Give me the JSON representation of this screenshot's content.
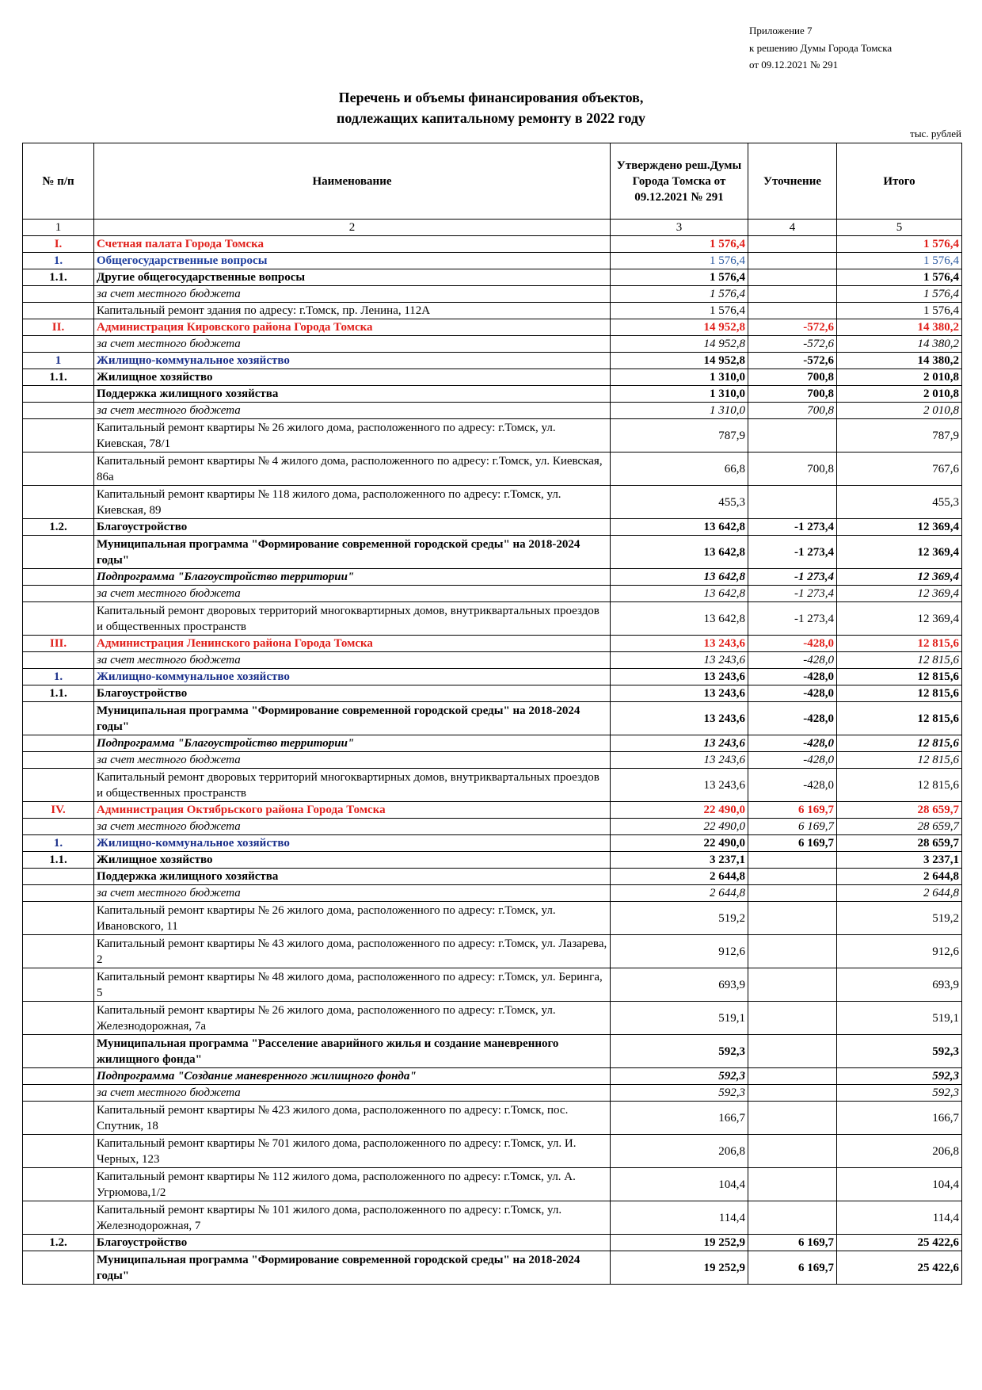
{
  "appendix": {
    "line1": "Приложение 7",
    "line2": "к решению Думы Города Томска",
    "line3": "от 09.12.2021 № 291"
  },
  "title": {
    "line1": "Перечень и объемы финансирования объектов,",
    "line2": "подлежащих капитальному ремонту в 2022 году"
  },
  "units": "тыс. рублей",
  "table": {
    "headers": {
      "num": "№ п/п",
      "name": "Наименование",
      "approved": "Утверждено реш.Думы Города Томска от 09.12.2021 № 291",
      "change": "Уточнение",
      "total": "Итого"
    },
    "column_numbers": [
      "1",
      "2",
      "3",
      "4",
      "5"
    ],
    "rows": [
      {
        "style": "red",
        "num": "I.",
        "name": "Счетная палата Города Томска",
        "approved": "1 576,4",
        "change": "",
        "total": "1 576,4"
      },
      {
        "style": "blue",
        "num": "1.",
        "name": "Общегосударственные вопросы",
        "approved": "1 576,4",
        "change": "",
        "total": "1 576,4"
      },
      {
        "style": "bold",
        "num": "1.1.",
        "name": "Другие общегосударственные вопросы",
        "approved": "1 576,4",
        "change": "",
        "total": "1 576,4"
      },
      {
        "style": "italic",
        "num": "",
        "name": "за счет местного бюджета",
        "approved": "1 576,4",
        "change": "",
        "total": "1 576,4"
      },
      {
        "style": "normal",
        "num": "",
        "name": "Капитальный ремонт здания по адресу: г.Томск, пр. Ленина, 112А",
        "approved": "1 576,4",
        "change": "",
        "total": "1 576,4"
      },
      {
        "style": "red",
        "num": "II.",
        "name": "Администрация Кировского района Города Томска",
        "approved": "14 952,8",
        "change": "-572,6",
        "total": "14 380,2"
      },
      {
        "style": "italic",
        "num": "",
        "name": "за счет местного бюджета",
        "approved": "14 952,8",
        "change": "-572,6",
        "total": "14 380,2"
      },
      {
        "style": "navy",
        "num": "1",
        "name": "Жилищно-коммунальное хозяйство",
        "approved": "14 952,8",
        "change": "-572,6",
        "total": "14 380,2"
      },
      {
        "style": "bold",
        "num": "1.1.",
        "name": "Жилищное хозяйство",
        "approved": "1 310,0",
        "change": "700,8",
        "total": "2 010,8"
      },
      {
        "style": "bold",
        "num": "",
        "name": "Поддержка жилищного хозяйства",
        "approved": "1 310,0",
        "change": "700,8",
        "total": "2 010,8"
      },
      {
        "style": "italic",
        "num": "",
        "name": "за счет местного бюджета",
        "approved": "1 310,0",
        "change": "700,8",
        "total": "2 010,8"
      },
      {
        "style": "normal tall",
        "num": "",
        "name": "Капитальный ремонт квартиры № 26 жилого дома, расположенного по адресу: г.Томск, ул. Киевская, 78/1",
        "approved": "787,9",
        "change": "",
        "total": "787,9"
      },
      {
        "style": "normal tall",
        "num": "",
        "name": "Капитальный ремонт квартиры № 4 жилого дома, расположенного по адресу: г.Томск, ул. Киевская, 86а",
        "approved": "66,8",
        "change": "700,8",
        "total": "767,6"
      },
      {
        "style": "normal tall",
        "num": "",
        "name": "Капитальный ремонт квартиры № 118 жилого дома, расположенного по адресу: г.Томск, ул. Киевская, 89",
        "approved": "455,3",
        "change": "",
        "total": "455,3"
      },
      {
        "style": "bold",
        "num": "1.2.",
        "name": "Благоустройство",
        "approved": "13 642,8",
        "change": "-1 273,4",
        "total": "12 369,4"
      },
      {
        "style": "bold tall",
        "num": "",
        "name": "Муниципальная программа \"Формирование современной городской среды\" на 2018-2024 годы\"",
        "approved": "13 642,8",
        "change": "-1 273,4",
        "total": "12 369,4"
      },
      {
        "style": "bolditalic",
        "num": "",
        "name": "Подпрограмма \"Благоустройство территории\"",
        "approved": "13 642,8",
        "change": "-1 273,4",
        "total": "12 369,4"
      },
      {
        "style": "italic",
        "num": "",
        "name": "за счет местного бюджета",
        "approved": "13 642,8",
        "change": "-1 273,4",
        "total": "12 369,4"
      },
      {
        "style": "normal tall",
        "num": "",
        "name": "Капитальный ремонт дворовых территорий многоквартирных домов, внутриквартальных проездов и общественных пространств",
        "approved": "13 642,8",
        "change": "-1 273,4",
        "total": "12 369,4"
      },
      {
        "style": "red",
        "num": "III.",
        "name": "Администрация Ленинского района Города Томска",
        "approved": "13 243,6",
        "change": "-428,0",
        "total": "12 815,6"
      },
      {
        "style": "italic",
        "num": "",
        "name": "за счет местного бюджета",
        "approved": "13 243,6",
        "change": "-428,0",
        "total": "12 815,6"
      },
      {
        "style": "navy",
        "num": "1.",
        "name": "Жилищно-коммунальное хозяйство",
        "approved": "13 243,6",
        "change": "-428,0",
        "total": "12 815,6"
      },
      {
        "style": "bold",
        "num": "1.1.",
        "name": "Благоустройство",
        "approved": "13 243,6",
        "change": "-428,0",
        "total": "12 815,6"
      },
      {
        "style": "bold tall",
        "num": "",
        "name": "Муниципальная программа \"Формирование современной городской среды\" на 2018-2024 годы\"",
        "approved": "13 243,6",
        "change": "-428,0",
        "total": "12 815,6"
      },
      {
        "style": "bolditalic",
        "num": "",
        "name": "Подпрограмма \"Благоустройство территории\"",
        "approved": "13 243,6",
        "change": "-428,0",
        "total": "12 815,6"
      },
      {
        "style": "italic",
        "num": "",
        "name": "за счет местного бюджета",
        "approved": "13 243,6",
        "change": "-428,0",
        "total": "12 815,6"
      },
      {
        "style": "normal tall",
        "num": "",
        "name": "Капитальный ремонт дворовых территорий многоквартирных домов, внутриквартальных проездов и общественных пространств",
        "approved": "13 243,6",
        "change": "-428,0",
        "total": "12 815,6"
      },
      {
        "style": "red",
        "num": "IV.",
        "name": "Администрация Октябрьского района Города Томска",
        "approved": "22 490,0",
        "change": "6 169,7",
        "total": "28 659,7"
      },
      {
        "style": "italic",
        "num": "",
        "name": "за счет местного бюджета",
        "approved": "22 490,0",
        "change": "6 169,7",
        "total": "28 659,7"
      },
      {
        "style": "navy",
        "num": "1.",
        "name": "Жилищно-коммунальное хозяйство",
        "approved": "22 490,0",
        "change": "6 169,7",
        "total": "28 659,7"
      },
      {
        "style": "bold",
        "num": "1.1.",
        "name": "Жилищное хозяйство",
        "approved": "3 237,1",
        "change": "",
        "total": "3 237,1"
      },
      {
        "style": "bold",
        "num": "",
        "name": "Поддержка жилищного хозяйства",
        "approved": "2 644,8",
        "change": "",
        "total": "2 644,8"
      },
      {
        "style": "italic",
        "num": "",
        "name": "за счет местного бюджета",
        "approved": "2 644,8",
        "change": "",
        "total": "2 644,8"
      },
      {
        "style": "normal tall",
        "num": "",
        "name": "Капитальный ремонт квартиры № 26 жилого дома, расположенного по адресу: г.Томск, ул. Ивановского, 11",
        "approved": "519,2",
        "change": "",
        "total": "519,2"
      },
      {
        "style": "normal tall",
        "num": "",
        "name": "Капитальный ремонт квартиры № 43 жилого дома, расположенного по адресу: г.Томск, ул. Лазарева, 2",
        "approved": "912,6",
        "change": "",
        "total": "912,6"
      },
      {
        "style": "normal tall",
        "num": "",
        "name": "Капитальный ремонт квартиры № 48 жилого дома, расположенного по адресу: г.Томск, ул. Беринга, 5",
        "approved": "693,9",
        "change": "",
        "total": "693,9"
      },
      {
        "style": "normal tall",
        "num": "",
        "name": "Капитальный ремонт квартиры № 26 жилого дома, расположенного по адресу: г.Томск, ул. Железнодорожная, 7а",
        "approved": "519,1",
        "change": "",
        "total": "519,1"
      },
      {
        "style": "bold tall",
        "num": "",
        "name": "Муниципальная программа \"Расселение аварийного жилья и создание маневренного жилищного фонда\"",
        "approved": "592,3",
        "change": "",
        "total": "592,3"
      },
      {
        "style": "bolditalic",
        "num": "",
        "name": "Подпрограмма \"Создание маневренного жилищного фонда\"",
        "approved": "592,3",
        "change": "",
        "total": "592,3"
      },
      {
        "style": "italic",
        "num": "",
        "name": "за счет местного бюджета",
        "approved": "592,3",
        "change": "",
        "total": "592,3"
      },
      {
        "style": "normal tall",
        "num": "",
        "name": "Капитальный ремонт квартиры № 423 жилого дома, расположенного по адресу: г.Томск, пос. Спутник, 18",
        "approved": "166,7",
        "change": "",
        "total": "166,7"
      },
      {
        "style": "normal tall",
        "num": "",
        "name": "Капитальный ремонт квартиры № 701 жилого дома, расположенного по адресу: г.Томск, ул. И. Черных, 123",
        "approved": "206,8",
        "change": "",
        "total": "206,8"
      },
      {
        "style": "normal tall",
        "num": "",
        "name": "Капитальный ремонт квартиры № 112 жилого дома, расположенного по адресу: г.Томск, ул. А. Угрюмова,1/2",
        "approved": "104,4",
        "change": "",
        "total": "104,4"
      },
      {
        "style": "normal tall",
        "num": "",
        "name": "Капитальный ремонт квартиры № 101 жилого дома, расположенного по адресу: г.Томск, ул. Железнодорожная, 7",
        "approved": "114,4",
        "change": "",
        "total": "114,4"
      },
      {
        "style": "bold",
        "num": "1.2.",
        "name": "Благоустройство",
        "approved": "19 252,9",
        "change": "6 169,7",
        "total": "25 422,6"
      },
      {
        "style": "bold tall",
        "num": "",
        "name": "Муниципальная программа \"Формирование современной городской среды\" на 2018-2024 годы\"",
        "approved": "19 252,9",
        "change": "6 169,7",
        "total": "25 422,6"
      }
    ]
  }
}
